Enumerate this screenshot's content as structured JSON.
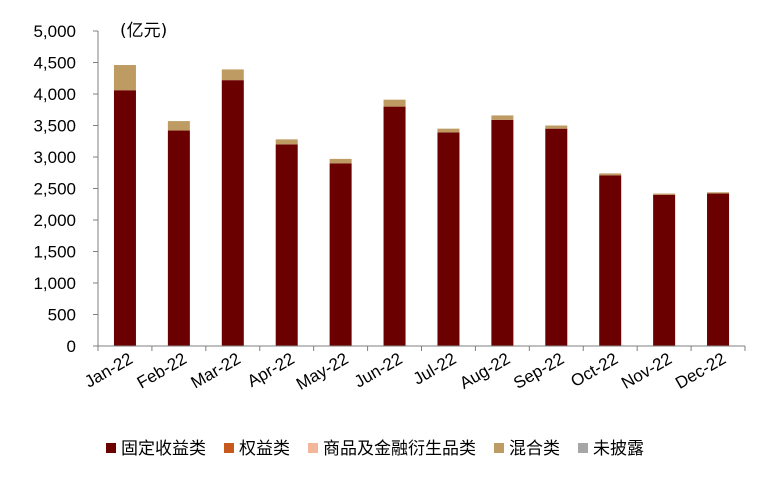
{
  "chart_data": {
    "type": "bar",
    "stacked": true,
    "unit_label": "(亿元)",
    "categories": [
      "Jan-22",
      "Feb-22",
      "Mar-22",
      "Apr-22",
      "May-22",
      "Jun-22",
      "Jul-22",
      "Aug-22",
      "Sep-22",
      "Oct-22",
      "Nov-22",
      "Dec-22"
    ],
    "ylim": [
      0,
      5000
    ],
    "yticks": [
      0,
      500,
      1000,
      1500,
      2000,
      2500,
      3000,
      3500,
      4000,
      4500,
      5000
    ],
    "ytick_labels": [
      "0",
      "500",
      "1,000",
      "1,500",
      "2,000",
      "2,500",
      "3,000",
      "3,500",
      "4,000",
      "4,500",
      "5,000"
    ],
    "grid": false,
    "legend_position": "bottom",
    "series": [
      {
        "name": "固定收益类",
        "color": "#6B0000",
        "values": [
          4060,
          3420,
          4220,
          3200,
          2900,
          3800,
          3390,
          3590,
          3450,
          2710,
          2400,
          2420
        ]
      },
      {
        "name": "权益类",
        "color": "#C65A1E",
        "values": [
          0,
          0,
          0,
          0,
          0,
          0,
          0,
          0,
          0,
          0,
          0,
          0
        ]
      },
      {
        "name": "商品及金融衍生品类",
        "color": "#F2B79B",
        "values": [
          0,
          0,
          0,
          0,
          0,
          0,
          0,
          0,
          0,
          0,
          0,
          0
        ]
      },
      {
        "name": "混合类",
        "color": "#BF9B64",
        "values": [
          400,
          150,
          170,
          80,
          70,
          110,
          60,
          70,
          50,
          30,
          20,
          20
        ]
      },
      {
        "name": "未披露",
        "color": "#A6A6A6",
        "values": [
          0,
          0,
          0,
          0,
          0,
          0,
          0,
          0,
          0,
          0,
          0,
          0
        ]
      }
    ]
  }
}
